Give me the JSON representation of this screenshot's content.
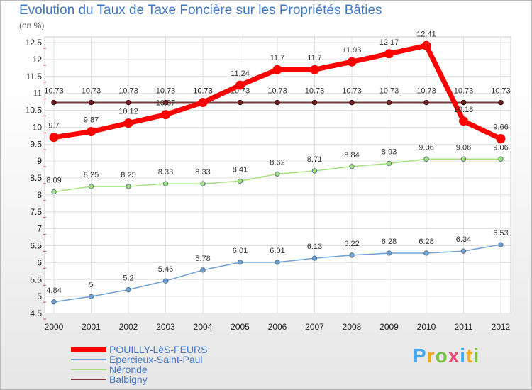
{
  "chart_data": {
    "type": "line",
    "title": "Evolution du Taux de Taxe Foncière sur les Propriétés Bâties",
    "ylabel": "(en %)",
    "xlabel": "",
    "categories": [
      "2000",
      "2001",
      "2002",
      "2003",
      "2004",
      "2005",
      "2006",
      "2007",
      "2008",
      "2009",
      "2010",
      "2011",
      "2012"
    ],
    "ylim": [
      4.5,
      12.5
    ],
    "yticks": [
      "4.5",
      "5",
      "5.5",
      "6",
      "6.5",
      "7",
      "7.5",
      "8",
      "8.5",
      "9",
      "9.5",
      "10",
      "10.5",
      "11",
      "11.5",
      "12",
      "12.5"
    ],
    "grid": true,
    "series": [
      {
        "name": "POUILLY-LèS-FEURS",
        "color": "#ff0000",
        "values": [
          9.7,
          9.87,
          10.12,
          10.37,
          10.73,
          11.24,
          11.7,
          11.7,
          11.93,
          12.17,
          12.41,
          10.18,
          9.66
        ]
      },
      {
        "name": "Épercieux-Saint-Paul",
        "color": "#6e9fd6",
        "values": [
          4.84,
          5,
          5.2,
          5.46,
          5.78,
          6.01,
          6.01,
          6.13,
          6.22,
          6.28,
          6.28,
          6.34,
          6.53
        ]
      },
      {
        "name": "Néronde",
        "color": "#a4e07a",
        "values": [
          8.09,
          8.25,
          8.25,
          8.33,
          8.33,
          8.41,
          8.62,
          8.71,
          8.84,
          8.93,
          9.06,
          9.06,
          9.06
        ]
      },
      {
        "name": "Balbigny",
        "color": "#7a3b3b",
        "values": [
          10.73,
          10.73,
          10.73,
          10.73,
          10.73,
          10.73,
          10.73,
          10.73,
          10.73,
          10.73,
          10.73,
          10.73,
          10.73
        ]
      }
    ],
    "legend_position": "bottom-left"
  },
  "logo": {
    "letters": [
      "P",
      "r",
      "o",
      "x",
      "i",
      "t",
      "i"
    ],
    "colors": [
      "#3fa9f5",
      "#f5a623",
      "#7cc242",
      "#e94e77",
      "#3fa9f5",
      "#f5a623",
      "#7cc242"
    ]
  }
}
